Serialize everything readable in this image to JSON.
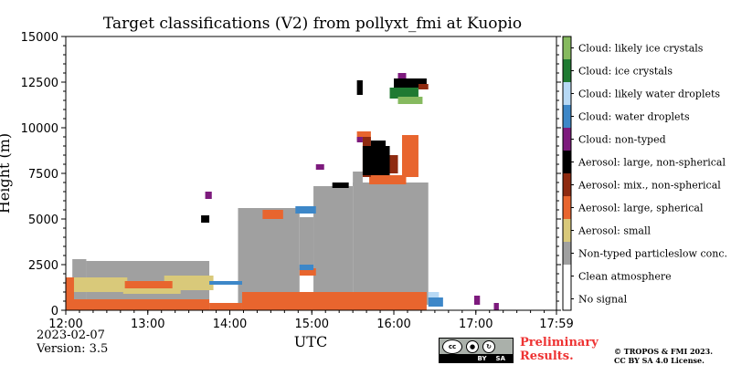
{
  "chart_data": {
    "type": "heatmap",
    "title": "Target classifications (V2) from pollyxt_fmi at Kuopio",
    "xlabel": "UTC",
    "ylabel": "Height (m)",
    "xlim": [
      12.0,
      17.983
    ],
    "ylim": [
      0,
      15000
    ],
    "x_ticks": [
      {
        "value": 12.0,
        "label": "12:00"
      },
      {
        "value": 13.0,
        "label": "13:00"
      },
      {
        "value": 14.0,
        "label": "14:00"
      },
      {
        "value": 15.0,
        "label": "15:00"
      },
      {
        "value": 16.0,
        "label": "16:00"
      },
      {
        "value": 17.0,
        "label": "17:00"
      },
      {
        "value": 17.983,
        "label": "17:59"
      }
    ],
    "y_ticks": [
      {
        "value": 0,
        "label": "0"
      },
      {
        "value": 2500,
        "label": "2500"
      },
      {
        "value": 5000,
        "label": "5000"
      },
      {
        "value": 7500,
        "label": "7500"
      },
      {
        "value": 10000,
        "label": "10000"
      },
      {
        "value": 12500,
        "label": "12500"
      },
      {
        "value": 15000,
        "label": "15000"
      }
    ],
    "classes": [
      {
        "name": "No signal",
        "color": "#ffffff"
      },
      {
        "name": "Clean atmosphere",
        "color": "#ffffff"
      },
      {
        "name": "Non-typed particleslow conc.",
        "color": "#a0a0a0"
      },
      {
        "name": "Aerosol: small",
        "color": "#d9c97a"
      },
      {
        "name": "Aerosol: large, spherical",
        "color": "#e8652e"
      },
      {
        "name": "Aerosol: mix., non-spherical",
        "color": "#8e2a10"
      },
      {
        "name": "Aerosol: large, non-spherical",
        "color": "#000000"
      },
      {
        "name": "Cloud: non-typed",
        "color": "#7d1a7d"
      },
      {
        "name": "Cloud: water droplets",
        "color": "#3d87c8"
      },
      {
        "name": "Cloud: likely water droplets",
        "color": "#b7d9f5"
      },
      {
        "name": "Cloud: ice crystals",
        "color": "#1f7a32"
      },
      {
        "name": "Cloud: likely ice crystals",
        "color": "#86ba5f"
      }
    ],
    "regions": [
      {
        "cls": 2,
        "x0": 12.08,
        "x1": 12.25,
        "y0": 300,
        "y1": 2800
      },
      {
        "cls": 2,
        "x0": 12.25,
        "x1": 13.75,
        "y0": 300,
        "y1": 2700
      },
      {
        "cls": 2,
        "x0": 14.1,
        "x1": 14.85,
        "y0": 300,
        "y1": 5600
      },
      {
        "cls": 2,
        "x0": 14.85,
        "x1": 15.02,
        "y0": 2300,
        "y1": 5100
      },
      {
        "cls": 2,
        "x0": 15.02,
        "x1": 15.5,
        "y0": 300,
        "y1": 6800
      },
      {
        "cls": 2,
        "x0": 15.5,
        "x1": 16.42,
        "y0": 300,
        "y1": 7000
      },
      {
        "cls": 2,
        "x0": 15.5,
        "x1": 15.62,
        "y0": 6800,
        "y1": 7600
      },
      {
        "cls": 3,
        "x0": 12.05,
        "x1": 12.75,
        "y0": 1000,
        "y1": 1800
      },
      {
        "cls": 3,
        "x0": 12.7,
        "x1": 13.4,
        "y0": 900,
        "y1": 1600
      },
      {
        "cls": 3,
        "x0": 13.2,
        "x1": 13.8,
        "y0": 1100,
        "y1": 1900
      },
      {
        "cls": 4,
        "x0": 12.0,
        "x1": 13.75,
        "y0": 0,
        "y1": 600
      },
      {
        "cls": 4,
        "x0": 13.75,
        "x1": 14.15,
        "y0": 0,
        "y1": 400
      },
      {
        "cls": 4,
        "x0": 14.15,
        "x1": 16.4,
        "y0": 0,
        "y1": 1000
      },
      {
        "cls": 4,
        "x0": 12.0,
        "x1": 12.1,
        "y0": 600,
        "y1": 1800
      },
      {
        "cls": 4,
        "x0": 12.72,
        "x1": 13.3,
        "y0": 1200,
        "y1": 1600
      },
      {
        "cls": 4,
        "x0": 14.85,
        "x1": 15.05,
        "y0": 1900,
        "y1": 2300
      },
      {
        "cls": 4,
        "x0": 14.4,
        "x1": 14.65,
        "y0": 5000,
        "y1": 5500
      },
      {
        "cls": 4,
        "x0": 15.7,
        "x1": 16.15,
        "y0": 6900,
        "y1": 7400
      },
      {
        "cls": 4,
        "x0": 16.1,
        "x1": 16.3,
        "y0": 7300,
        "y1": 9600
      },
      {
        "cls": 4,
        "x0": 15.55,
        "x1": 15.72,
        "y0": 9300,
        "y1": 9800
      },
      {
        "cls": 5,
        "x0": 15.62,
        "x1": 15.72,
        "y0": 7300,
        "y1": 9500
      },
      {
        "cls": 5,
        "x0": 15.88,
        "x1": 16.05,
        "y0": 7500,
        "y1": 8500
      },
      {
        "cls": 6,
        "x0": 15.62,
        "x1": 15.95,
        "y0": 7400,
        "y1": 9000
      },
      {
        "cls": 6,
        "x0": 15.72,
        "x1": 15.9,
        "y0": 8600,
        "y1": 9300
      },
      {
        "cls": 6,
        "x0": 15.25,
        "x1": 15.45,
        "y0": 6700,
        "y1": 7000
      },
      {
        "cls": 6,
        "x0": 13.65,
        "x1": 13.75,
        "y0": 4800,
        "y1": 5200
      },
      {
        "cls": 7,
        "x0": 15.05,
        "x1": 15.15,
        "y0": 7700,
        "y1": 8000
      },
      {
        "cls": 7,
        "x0": 15.55,
        "x1": 15.62,
        "y0": 9200,
        "y1": 9500
      },
      {
        "cls": 7,
        "x0": 16.05,
        "x1": 16.15,
        "y0": 12700,
        "y1": 13000
      },
      {
        "cls": 7,
        "x0": 16.98,
        "x1": 17.05,
        "y0": 300,
        "y1": 800
      },
      {
        "cls": 7,
        "x0": 17.22,
        "x1": 17.28,
        "y0": 0,
        "y1": 400
      },
      {
        "cls": 7,
        "x0": 13.7,
        "x1": 13.78,
        "y0": 6100,
        "y1": 6500
      },
      {
        "cls": 8,
        "x0": 14.85,
        "x1": 15.02,
        "y0": 2200,
        "y1": 2500
      },
      {
        "cls": 8,
        "x0": 16.42,
        "x1": 16.6,
        "y0": 200,
        "y1": 700
      },
      {
        "cls": 8,
        "x0": 14.8,
        "x1": 15.05,
        "y0": 5300,
        "y1": 5700
      },
      {
        "cls": 8,
        "x0": 13.75,
        "x1": 14.15,
        "y0": 1400,
        "y1": 1600
      },
      {
        "cls": 9,
        "x0": 16.42,
        "x1": 16.55,
        "y0": 700,
        "y1": 1000
      },
      {
        "cls": 10,
        "x0": 15.95,
        "x1": 16.3,
        "y0": 11600,
        "y1": 12200
      },
      {
        "cls": 11,
        "x0": 16.05,
        "x1": 16.35,
        "y0": 11300,
        "y1": 11700
      },
      {
        "cls": 6,
        "x0": 16.0,
        "x1": 16.4,
        "y0": 12200,
        "y1": 12700
      },
      {
        "cls": 6,
        "x0": 15.55,
        "x1": 15.62,
        "y0": 11800,
        "y1": 12600
      },
      {
        "cls": 5,
        "x0": 16.3,
        "x1": 16.42,
        "y0": 12100,
        "y1": 12400
      }
    ]
  },
  "date": "2023-02-07",
  "version": "Version: 3.5",
  "cc_badge": {
    "cc": "cc",
    "by": "BY",
    "sa": "SA"
  },
  "preliminary": [
    "Preliminary",
    "Results."
  ],
  "copyright": [
    "© TROPOS & FMI 2023.",
    "CC BY SA 4.0 License."
  ]
}
